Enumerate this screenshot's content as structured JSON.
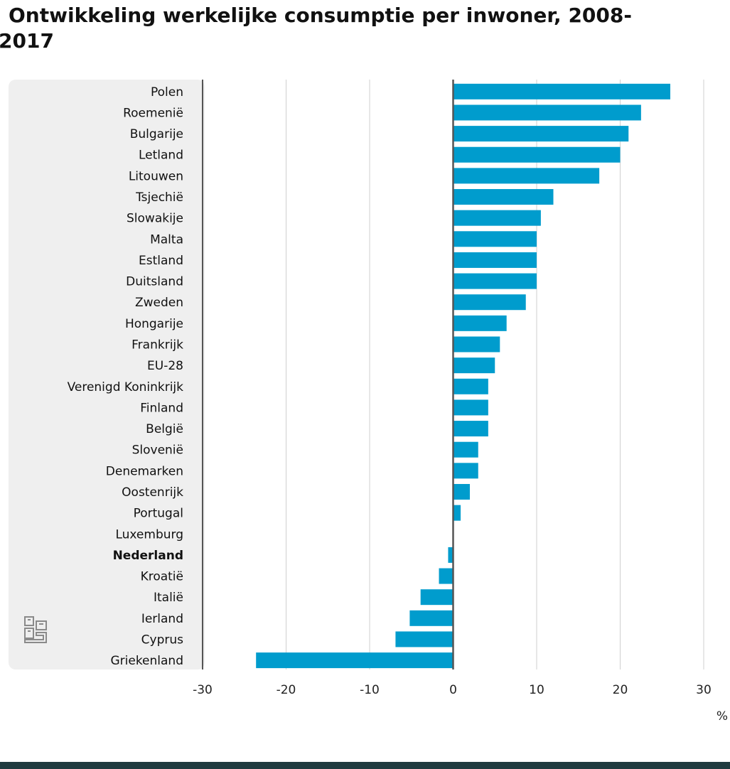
{
  "chart_data": {
    "type": "bar",
    "orientation": "horizontal",
    "title": "Ontwikkeling werkelijke consumptie per inwoner, 2008-2017",
    "unit_label": "%",
    "xlim": [
      -30,
      30
    ],
    "xticks": [
      -30,
      -20,
      -10,
      0,
      10,
      20,
      30
    ],
    "grid": true,
    "highlight": "Nederland",
    "bar_color": "#009ccd",
    "categories": [
      "Polen",
      "Roemenië",
      "Bulgarije",
      "Letland",
      "Litouwen",
      "Tsjechië",
      "Slowakije",
      "Malta",
      "Estland",
      "Duitsland",
      "Zweden",
      "Hongarije",
      "Frankrijk",
      "EU-28",
      "Verenigd Koninkrijk",
      "Finland",
      "België",
      "Slovenië",
      "Denemarken",
      "Oostenrijk",
      "Portugal",
      "Luxemburg",
      "Nederland",
      "Kroatië",
      "Italië",
      "Ierland",
      "Cyprus",
      "Griekenland"
    ],
    "values": [
      26.0,
      22.5,
      21.0,
      20.0,
      17.5,
      12.0,
      10.5,
      10.0,
      10.0,
      10.0,
      8.7,
      6.4,
      5.6,
      5.0,
      4.2,
      4.2,
      4.2,
      3.0,
      3.0,
      2.0,
      0.9,
      0.0,
      -0.6,
      -1.7,
      -3.9,
      -5.2,
      -6.9,
      -23.6
    ]
  },
  "colors": {
    "bar": "#009ccd",
    "label_panel": "#efefef",
    "gridline": "#cfcfcf",
    "axis": "#555555",
    "footer": "#1f3a3f"
  },
  "logo": {
    "icon": "cbs-logo-icon"
  }
}
